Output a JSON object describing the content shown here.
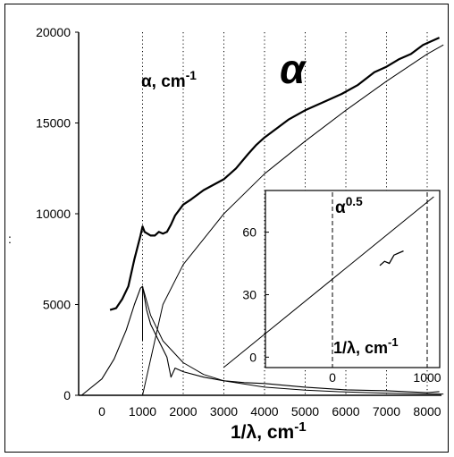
{
  "chart_data": [
    {
      "type": "line",
      "title": "α",
      "xlabel": "1/λ, cm-1",
      "ylabel": "α, cm-1",
      "side_label": ":",
      "xlim": [
        -600,
        8500
      ],
      "ylim": [
        0,
        20000
      ],
      "x_ticks": [
        "0",
        "1000",
        "2000",
        "3000",
        "4000",
        "5000",
        "6000",
        "7000",
        "8000"
      ],
      "y_ticks": [
        "0",
        "5000",
        "10000",
        "15000",
        "20000"
      ],
      "grid": "vertical dotted",
      "series": [
        {
          "x": [
            200,
            350,
            500,
            650,
            800,
            950,
            1000,
            1050,
            1200,
            1300,
            1400,
            1500,
            1600,
            1700,
            1800,
            2000,
            2200,
            2500,
            3000,
            3300,
            3600,
            3800,
            4000,
            4300,
            4600,
            5000,
            5500,
            5900,
            6300,
            6700,
            7000,
            7300,
            7600,
            7900,
            8100,
            8300
          ],
          "values": [
            4700,
            4800,
            5300,
            6000,
            7500,
            8800,
            9300,
            9000,
            8800,
            8800,
            9000,
            8900,
            9000,
            9400,
            9900,
            10500,
            10800,
            11300,
            11900,
            12500,
            13300,
            13800,
            14200,
            14700,
            15200,
            15700,
            16200,
            16600,
            17100,
            17800,
            18100,
            18500,
            18800,
            19300,
            19500,
            19700
          ]
        },
        {
          "x": [
            -500,
            0,
            300,
            600,
            800,
            950,
            1000,
            1100,
            1200,
            1400,
            1600,
            1700,
            1800,
            2000,
            2500,
            3000,
            3500,
            4000,
            5000,
            6000,
            7000,
            8000,
            8300
          ],
          "values": [
            0,
            900,
            2000,
            3600,
            5000,
            5900,
            6000,
            4700,
            3900,
            3000,
            2100,
            1000,
            1500,
            1300,
            1000,
            800,
            700,
            650,
            450,
            300,
            250,
            150,
            200
          ]
        },
        {
          "x": [
            1000,
            1500,
            2000,
            3000,
            4000,
            5000,
            6000,
            7000,
            8000,
            8400
          ],
          "values": [
            0,
            5000,
            7200,
            10000,
            12200,
            14000,
            15700,
            17300,
            18800,
            19300
          ]
        },
        {
          "x": [
            1000,
            1200,
            1500,
            2000,
            2500,
            3000,
            4000,
            5000,
            6000,
            7000,
            8000,
            8400
          ],
          "values": [
            6000,
            4400,
            3000,
            1800,
            1150,
            800,
            450,
            280,
            180,
            120,
            80,
            70
          ]
        }
      ]
    },
    {
      "type": "line",
      "title": "α0.5",
      "xlabel": "1/λ, cm-1",
      "x_ticks": [
        "0",
        "1000"
      ],
      "y_ticks": [
        "0",
        "30",
        "60"
      ],
      "xlim": [
        -1150,
        1100
      ],
      "ylim": [
        -5,
        80
      ],
      "series": [
        {
          "x": [
            -1150,
            1070
          ],
          "values": [
            -5,
            77
          ]
        },
        {
          "x": [
            500,
            550,
            600,
            650,
            700,
            750
          ],
          "values": [
            44,
            46,
            45,
            49,
            50,
            51
          ]
        }
      ]
    }
  ]
}
